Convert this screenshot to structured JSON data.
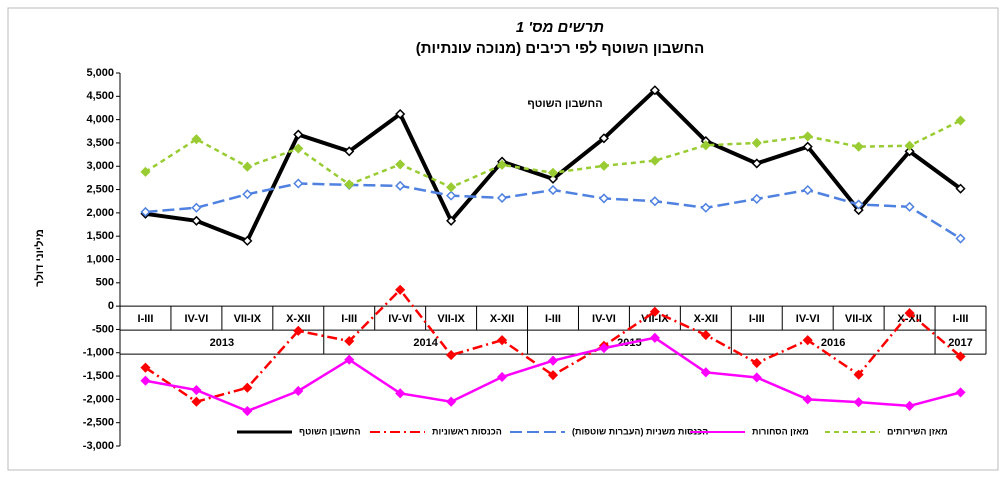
{
  "chart_data": {
    "type": "line",
    "title": "תרשים מס' 1",
    "subtitle": "החשבון השוטף לפי רכיבים (מנוכה עונתיות)",
    "y_label": "מיליוני דולר",
    "annotation": "החשבון השוטף",
    "categories": [
      "I-III",
      "IV-VI",
      "VII-IX",
      "X-XII",
      "I-III",
      "IV-VI",
      "VII-IX",
      "X-XII",
      "I-III",
      "IV-VI",
      "VII-IX",
      "X-XII",
      "I-III",
      "IV-VI",
      "VII-IX",
      "X-XII",
      "I-III"
    ],
    "years": [
      "2013",
      "2014",
      "2015",
      "2016",
      "2017"
    ],
    "ylim": [
      -3000,
      5000
    ],
    "yticks": [
      {
        "value": -3000,
        "label": "-3,000"
      },
      {
        "value": -2500,
        "label": "-2,500"
      },
      {
        "value": -2000,
        "label": "-2,000"
      },
      {
        "value": -1500,
        "label": "-1,500"
      },
      {
        "value": -1000,
        "label": "-1,000"
      },
      -500,
      0,
      500,
      {
        "value": 1000,
        "label": "1,000"
      },
      {
        "value": 1500,
        "label": "1,500"
      },
      {
        "value": 2000,
        "label": "2,000"
      },
      {
        "value": 2500,
        "label": "2,500"
      },
      {
        "value": 3000,
        "label": "3,000"
      },
      {
        "value": 3500,
        "label": "3,500"
      },
      {
        "value": 4000,
        "label": "4,000"
      },
      {
        "value": 4500,
        "label": "4,500"
      },
      {
        "value": 5000,
        "label": "5,000"
      }
    ],
    "grid": false,
    "legend": "bottom",
    "series": [
      {
        "name": "החשבון השוטף",
        "color": "#000000",
        "dash": "solid",
        "values": [
          1980,
          1830,
          1400,
          3680,
          3320,
          4120,
          1830,
          3100,
          2730,
          3600,
          4630,
          3540,
          3060,
          3420,
          2060,
          3320,
          2520
        ]
      },
      {
        "name": "הכנסות ראשוניות",
        "color": "#ff0000",
        "dash": "dashdot",
        "values": [
          -1320,
          -2050,
          -1750,
          -530,
          -750,
          350,
          -1050,
          -730,
          -1480,
          -850,
          -120,
          -620,
          -1220,
          -730,
          -1470,
          -150,
          -1080
        ]
      },
      {
        "name": "הכנסות משניות (העברות שוטפות)",
        "color": "#4f81e0",
        "dash": "dash",
        "values": [
          2020,
          2110,
          2400,
          2630,
          2600,
          2580,
          2370,
          2320,
          2490,
          2310,
          2250,
          2110,
          2300,
          2490,
          2180,
          2130,
          1450
        ]
      },
      {
        "name": "מאזן הסחורות",
        "color": "#ff00ff",
        "dash": "solid",
        "values": [
          -1600,
          -1800,
          -2250,
          -1820,
          -1150,
          -1870,
          -2050,
          -1520,
          -1170,
          -900,
          -680,
          -1420,
          -1530,
          -2000,
          -2060,
          -2140,
          -1850
        ]
      },
      {
        "name": "מאזן השירותים",
        "color": "#99cc33",
        "dash": "dot",
        "values": [
          2880,
          3580,
          2990,
          3380,
          2610,
          3040,
          2550,
          3030,
          2860,
          3010,
          3120,
          3450,
          3500,
          3640,
          3420,
          3440,
          3980
        ]
      }
    ]
  }
}
